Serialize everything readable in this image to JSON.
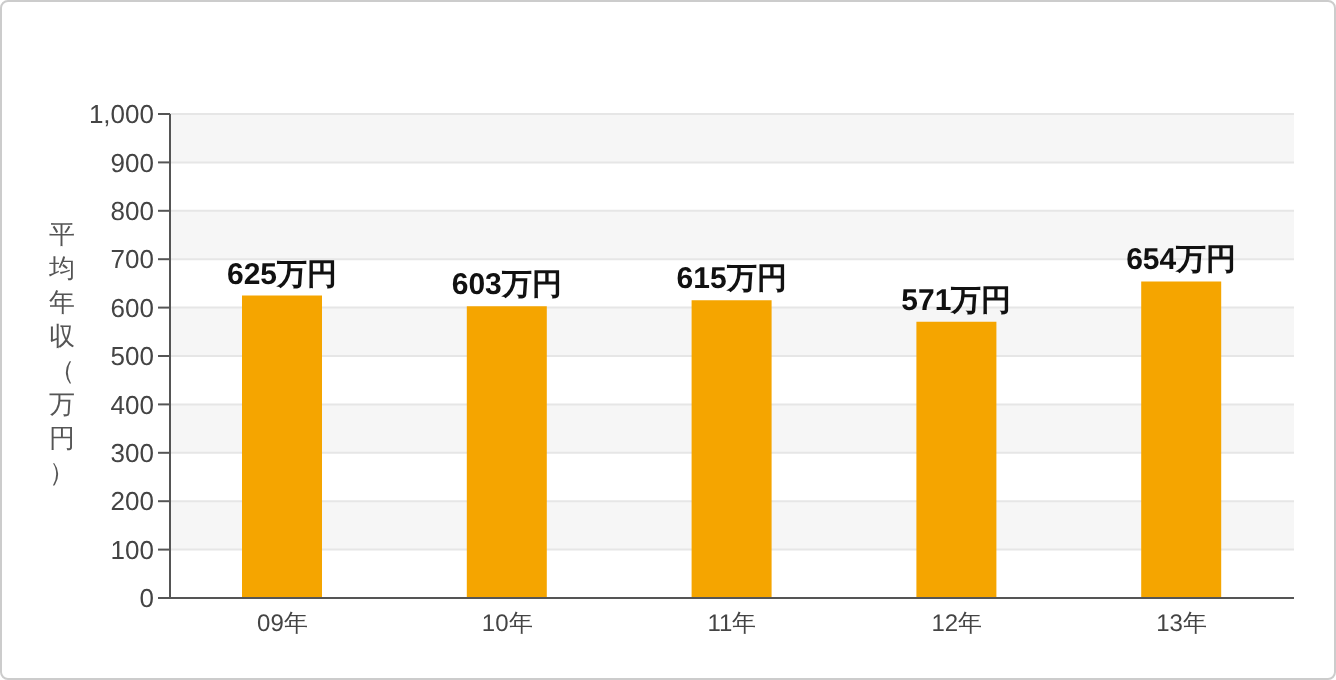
{
  "chart_data": {
    "type": "bar",
    "ylabel": "平均年収（万円）",
    "categories": [
      "09年",
      "10年",
      "11年",
      "12年",
      "13年"
    ],
    "values": [
      625,
      603,
      615,
      571,
      654
    ],
    "value_labels": [
      "625万円",
      "603万円",
      "615万円",
      "571万円",
      "654万円"
    ],
    "color": "#f5a500",
    "ylim": [
      0,
      1000
    ],
    "yticks": [
      0,
      100,
      200,
      300,
      400,
      500,
      600,
      700,
      800,
      900,
      {
        "value": 1000,
        "label": "1,000"
      }
    ],
    "grid": "y",
    "legend": false
  }
}
